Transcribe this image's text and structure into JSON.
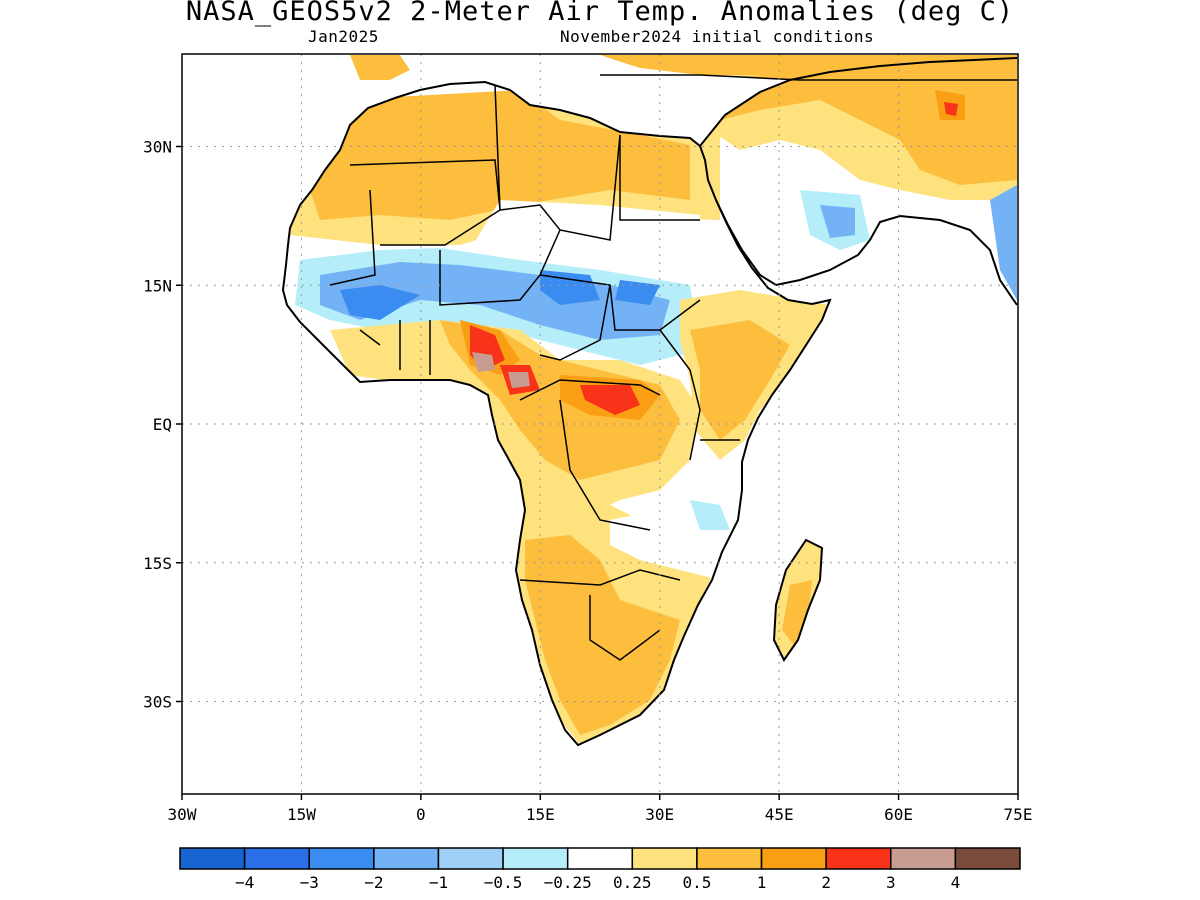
{
  "title": "NASA_GEOS5v2 2-Meter Air Temp. Anomalies (deg C)",
  "subtitle_left": "Jan2025",
  "subtitle_right": "November2024 initial conditions",
  "map": {
    "lon_range": [
      -30,
      75
    ],
    "lat_range": [
      -40,
      40
    ],
    "lon_ticks": [
      {
        "value": -30,
        "label": "30W"
      },
      {
        "value": -15,
        "label": "15W"
      },
      {
        "value": 0,
        "label": "0"
      },
      {
        "value": 15,
        "label": "15E"
      },
      {
        "value": 30,
        "label": "30E"
      },
      {
        "value": 45,
        "label": "45E"
      },
      {
        "value": 60,
        "label": "60E"
      },
      {
        "value": 75,
        "label": "75E"
      }
    ],
    "lat_ticks": [
      {
        "value": 30,
        "label": "30N"
      },
      {
        "value": 15,
        "label": "15N"
      },
      {
        "value": 0,
        "label": "EQ"
      },
      {
        "value": -15,
        "label": "15S"
      },
      {
        "value": -30,
        "label": "30S"
      }
    ],
    "grid": "dotted"
  },
  "legend": {
    "colors": [
      "#1764d2",
      "#2a6ee8",
      "#3b8cf0",
      "#73b3f5",
      "#9fd1f8",
      "#b5eef8",
      "#ffffff",
      "#fee27e",
      "#fdbe3e",
      "#fa9e14",
      "#f8331a",
      "#c89c91",
      "#7a4a3a"
    ],
    "labels": [
      "-4",
      "-3",
      "-2",
      "-1",
      "-0.5",
      "-0.25",
      "0.25",
      "0.5",
      "1",
      "2",
      "3",
      "4"
    ]
  },
  "colors": {
    "warm_light": "#fee27e",
    "warm_mid": "#fdbe3e",
    "warm_strong": "#fa9e14",
    "hot": "#f8331a",
    "cool_light": "#b5eef8",
    "cool_mid": "#73b3f5",
    "cool_strong": "#3b8cf0"
  }
}
